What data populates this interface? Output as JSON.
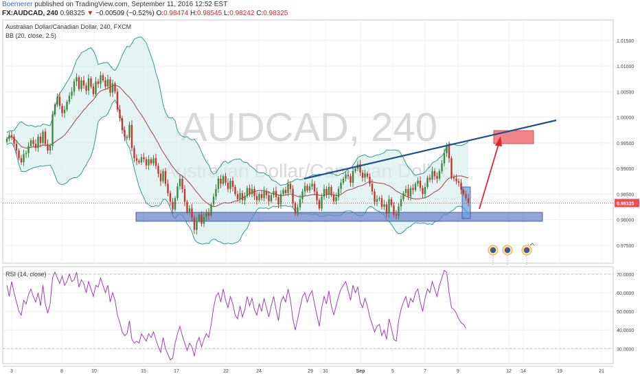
{
  "header": {
    "author": "Boernerer",
    "published": "published on TradingView.com, September 11, 2016 12:52 EST",
    "symbol": "FX:AUDCAD, 240",
    "last": "0.98325",
    "arrow": "▼",
    "change": "−0.00509 (−0.52%)",
    "o_label": "O:",
    "o_val": "0.98474",
    "h_label": "H:",
    "h_val": "0.98545",
    "l_label": "L:",
    "l_val": "0.98242",
    "c_label": "C:",
    "c_val": "0.98325"
  },
  "colors": {
    "up": "#3a8a43",
    "down": "#c2372f",
    "bb_band": "#2e9b8e",
    "bb_fill": "#d8efec",
    "bb_basis": "#a04040",
    "rsi_line": "#a33cb7",
    "trendline": "#1c4f8c",
    "support_zone": "#6f86c9",
    "target_zone": "#f07077",
    "arrow": "#e0262f",
    "price_label_bg": "#f04a56",
    "watermark": "#d8d8d8"
  },
  "chart_data": [
    {
      "type": "candlestick",
      "title": "Australian Dollar/Canadian Dollar, 240, FXCM",
      "indicator_label": "BB (20, close, 2.5)",
      "watermark": "AUDCAD, 240",
      "watermark_sub": "Australian Dollar/Canadian Dollar",
      "ylim": [
        0.9715,
        1.019
      ],
      "y_ticks": [
        "1.01500",
        "1.01000",
        "1.00500",
        "1.00000",
        "0.99500",
        "0.99000",
        "0.98500",
        "0.98000",
        "0.97500"
      ],
      "y_tick_values": [
        1.015,
        1.01,
        1.005,
        1.0,
        0.995,
        0.99,
        0.985,
        0.98,
        0.975
      ],
      "x_ticks": [
        "3",
        "8",
        "10",
        "15",
        "17",
        "22",
        "24",
        "29",
        "31",
        "Sep",
        "5",
        "7",
        "9",
        "12",
        "14",
        "19",
        "21"
      ],
      "last_price_label": "0.98325",
      "last_price": 0.98325,
      "close": [
        0.9958,
        0.9965,
        0.9962,
        0.9948,
        0.9935,
        0.992,
        0.9912,
        0.9928,
        0.993,
        0.9944,
        0.9955,
        0.9948,
        0.994,
        0.9962,
        0.995,
        0.9972,
        0.9948,
        0.9935,
        0.9944,
        1.0005,
        1.0025,
        1.004,
        1.0022,
        1.0008,
        1.0015,
        1.003,
        1.0042,
        1.005,
        1.007,
        1.0078,
        1.0055,
        1.0072,
        1.0062,
        1.0052,
        1.0076,
        1.006,
        1.0045,
        1.007,
        1.0065,
        1.0082,
        1.0072,
        1.006,
        1.0074,
        1.0048,
        1.0066,
        1.005,
        1.0015,
        0.9998,
        0.9975,
        0.9962,
        0.996,
        0.9985,
        0.994,
        0.992,
        0.9915,
        0.9912,
        0.9922,
        0.9918,
        0.9906,
        0.9918,
        0.991,
        0.992,
        0.9905,
        0.989,
        0.9875,
        0.9895,
        0.987,
        0.9852,
        0.9835,
        0.982,
        0.9842,
        0.9865,
        0.988,
        0.986,
        0.9835,
        0.9815,
        0.9822,
        0.9804,
        0.978,
        0.9798,
        0.981,
        0.9792,
        0.9805,
        0.9815,
        0.9808,
        0.983,
        0.9845,
        0.986,
        0.988,
        0.987,
        0.9885,
        0.9872,
        0.986,
        0.9876,
        0.9864,
        0.985,
        0.984,
        0.9852,
        0.9838,
        0.9846,
        0.9862,
        0.985,
        0.986,
        0.9846,
        0.9838,
        0.985,
        0.9842,
        0.9856,
        0.9848,
        0.9836,
        0.9848,
        0.9856,
        0.9844,
        0.983,
        0.985,
        0.9858,
        0.9852,
        0.987,
        0.986,
        0.9832,
        0.9812,
        0.9824,
        0.984,
        0.9855,
        0.9866,
        0.9857,
        0.9865,
        0.987,
        0.9855,
        0.9838,
        0.9822,
        0.9845,
        0.986,
        0.985,
        0.9864,
        0.9848,
        0.9836,
        0.9844,
        0.986,
        0.9872,
        0.988,
        0.9888,
        0.9885,
        0.9872,
        0.9895,
        0.99,
        0.9908,
        0.9892,
        0.9882,
        0.989,
        0.9884,
        0.987,
        0.9855,
        0.9835,
        0.984,
        0.9842,
        0.9825,
        0.983,
        0.9812,
        0.984,
        0.9828,
        0.981,
        0.9808,
        0.9826,
        0.984,
        0.9852,
        0.986,
        0.9845,
        0.9862,
        0.9858,
        0.987,
        0.9876,
        0.9862,
        0.985,
        0.9864,
        0.9882,
        0.9878,
        0.9895,
        0.9885,
        0.988,
        0.9895,
        0.991,
        0.993,
        0.9945,
        0.992,
        0.9882,
        0.988,
        0.9875,
        0.9872,
        0.9858,
        0.985,
        0.9842,
        0.98325
      ]
    },
    {
      "type": "line",
      "title": "RSI (14, close)",
      "ylim": [
        22,
        74
      ],
      "y_ticks": [
        "70.0000",
        "60.0000",
        "50.0000",
        "40.0000",
        "30.0000"
      ],
      "y_tick_values": [
        70,
        60,
        50,
        40,
        30
      ],
      "series": [
        {
          "name": "RSI (14, close)",
          "values": [
            64,
            58,
            66,
            60,
            55,
            50,
            48,
            56,
            54,
            59,
            62,
            58,
            55,
            60,
            53,
            64,
            54,
            49,
            54,
            68,
            71,
            68,
            65,
            69,
            64,
            66,
            70,
            66,
            67,
            71,
            63,
            67,
            65,
            60,
            66,
            62,
            58,
            64,
            63,
            68,
            64,
            60,
            64,
            55,
            60,
            56,
            48,
            44,
            39,
            37,
            38,
            45,
            35,
            33,
            34,
            33,
            38,
            36,
            34,
            38,
            36,
            39,
            35,
            31,
            28,
            36,
            30,
            27,
            24,
            25,
            33,
            38,
            42,
            37,
            33,
            29,
            33,
            31,
            26,
            33,
            36,
            31,
            35,
            38,
            36,
            43,
            52,
            58,
            60,
            55,
            62,
            56,
            52,
            58,
            54,
            48,
            46,
            53,
            47,
            51,
            58,
            53,
            57,
            51,
            48,
            54,
            50,
            57,
            52,
            47,
            53,
            58,
            51,
            45,
            55,
            58,
            55,
            62,
            56,
            46,
            40,
            46,
            52,
            58,
            60,
            55,
            59,
            61,
            54,
            48,
            42,
            52,
            58,
            54,
            61,
            53,
            48,
            53,
            58,
            62,
            64,
            66,
            61,
            56,
            64,
            60,
            63,
            55,
            52,
            57,
            53,
            47,
            43,
            39,
            42,
            43,
            37,
            40,
            35,
            46,
            41,
            35,
            34,
            45,
            51,
            55,
            58,
            52,
            57,
            55,
            60,
            62,
            55,
            50,
            57,
            62,
            60,
            66,
            62,
            58,
            64,
            68,
            72,
            71,
            60,
            52,
            51,
            49,
            46,
            44,
            43,
            41
          ]
        }
      ]
    }
  ]
}
